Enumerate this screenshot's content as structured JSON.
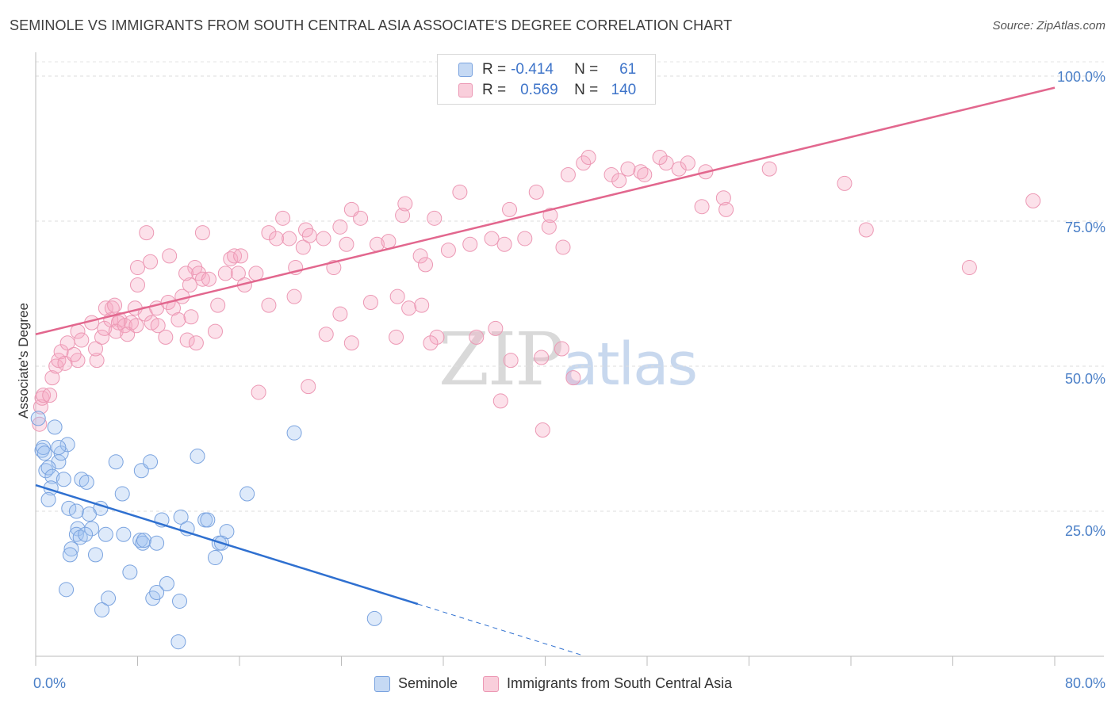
{
  "header": {
    "title": "SEMINOLE VS IMMIGRANTS FROM SOUTH CENTRAL ASIA ASSOCIATE'S DEGREE CORRELATION CHART",
    "source": "Source: ZipAtlas.com"
  },
  "watermark": {
    "zip": "ZIP",
    "atlas": "atlas"
  },
  "legend_top": {
    "rows": [
      {
        "r_label": "R =",
        "r_value": "-0.414",
        "n_label": "N =",
        "n_value": "61",
        "color": "#a8c6ef"
      },
      {
        "r_label": "R =",
        "r_value": "0.569",
        "n_label": "N =",
        "n_value": "140",
        "color": "#f6b6ca"
      }
    ]
  },
  "bottom_legend": [
    {
      "label": "Seminole",
      "color": "#a8c6ef"
    },
    {
      "label": "Immigrants from South Central Asia",
      "color": "#f6b6ca"
    }
  ],
  "chart_data": {
    "type": "scatter",
    "title": "SEMINOLE VS IMMIGRANTS FROM SOUTH CENTRAL ASIA ASSOCIATE'S DEGREE CORRELATION CHART",
    "xlabel": "",
    "ylabel": "Associate's Degree",
    "xlim": [
      0,
      80
    ],
    "ylim": [
      0,
      100
    ],
    "x_tick_labels": [
      "0.0%",
      "80.0%"
    ],
    "y_tick_labels": [
      "25.0%",
      "50.0%",
      "75.0%",
      "100.0%"
    ],
    "y_ticks": [
      25,
      50,
      75,
      100
    ],
    "grid": true,
    "colors": {
      "seminole": "#6f9fe0",
      "immigrants": "#eb8fae",
      "seminole_line": "#2f70d0",
      "immigrants_line": "#e2678e"
    },
    "series": [
      {
        "name": "Seminole",
        "trend": {
          "x": [
            0,
            30
          ],
          "y": [
            29.5,
            9.0
          ],
          "dashed_to_x": 43
        },
        "points": [
          [
            0.2,
            41
          ],
          [
            0.5,
            35.5
          ],
          [
            0.6,
            36
          ],
          [
            1.5,
            39.5
          ],
          [
            1.8,
            33.5
          ],
          [
            2,
            35
          ],
          [
            2.5,
            36.5
          ],
          [
            0.8,
            32
          ],
          [
            1,
            32.5
          ],
          [
            1.3,
            31
          ],
          [
            2.2,
            30.5
          ],
          [
            3.6,
            30.5
          ],
          [
            1.2,
            29
          ],
          [
            1,
            27
          ],
          [
            2.6,
            25.5
          ],
          [
            3.2,
            25
          ],
          [
            5.1,
            25.5
          ],
          [
            6.8,
            28
          ],
          [
            4.2,
            24.5
          ],
          [
            3.3,
            22
          ],
          [
            4.4,
            22
          ],
          [
            3.2,
            21
          ],
          [
            3.5,
            20.5
          ],
          [
            3.9,
            21
          ],
          [
            5.5,
            21
          ],
          [
            6.9,
            21
          ],
          [
            2.8,
            18.5
          ],
          [
            2.7,
            17.5
          ],
          [
            4.7,
            17.5
          ],
          [
            7.4,
            14.5
          ],
          [
            8.2,
            20
          ],
          [
            8.4,
            19.5
          ],
          [
            8.5,
            20
          ],
          [
            9.5,
            19.5
          ],
          [
            9.9,
            23.5
          ],
          [
            11.4,
            24
          ],
          [
            11.9,
            22
          ],
          [
            13.3,
            23.5
          ],
          [
            13.5,
            23.5
          ],
          [
            14.1,
            17
          ],
          [
            14.4,
            19.5
          ],
          [
            15.0,
            21.5
          ],
          [
            14.6,
            19.5
          ],
          [
            6.3,
            33.5
          ],
          [
            8.3,
            32
          ],
          [
            9.0,
            33.5
          ],
          [
            12.7,
            34.5
          ],
          [
            16.6,
            28
          ],
          [
            20.3,
            38.5
          ],
          [
            2.4,
            11.5
          ],
          [
            5.7,
            10
          ],
          [
            9.2,
            10
          ],
          [
            10.3,
            12.5
          ],
          [
            11.3,
            9.5
          ],
          [
            5.2,
            8
          ],
          [
            11.2,
            2.5
          ],
          [
            26.6,
            6.5
          ],
          [
            0.7,
            35
          ],
          [
            1.8,
            36
          ],
          [
            4.0,
            30
          ],
          [
            9.5,
            11
          ]
        ]
      },
      {
        "name": "Immigrants from South Central Asia",
        "trend": {
          "x": [
            0,
            80
          ],
          "y": [
            55.5,
            98.0
          ]
        },
        "points": [
          [
            0.3,
            40
          ],
          [
            0.4,
            43
          ],
          [
            0.5,
            44.5
          ],
          [
            0.6,
            45
          ],
          [
            1.1,
            45
          ],
          [
            1.3,
            48
          ],
          [
            1.6,
            50
          ],
          [
            1.8,
            51
          ],
          [
            2,
            52.5
          ],
          [
            2.3,
            50.5
          ],
          [
            2.5,
            54
          ],
          [
            3.3,
            51
          ],
          [
            3,
            52
          ],
          [
            3.3,
            56
          ],
          [
            3.6,
            54.5
          ],
          [
            4.8,
            51
          ],
          [
            4.7,
            53
          ],
          [
            4.4,
            57.5
          ],
          [
            5.2,
            55
          ],
          [
            5.4,
            56.5
          ],
          [
            5.9,
            58
          ],
          [
            5.5,
            60
          ],
          [
            6,
            60
          ],
          [
            6.2,
            60.5
          ],
          [
            6.6,
            58
          ],
          [
            6.5,
            57.5
          ],
          [
            6.3,
            56
          ],
          [
            7,
            57
          ],
          [
            7.5,
            57.5
          ],
          [
            7.2,
            55.5
          ],
          [
            7.8,
            60
          ],
          [
            8,
            64
          ],
          [
            8,
            67
          ],
          [
            8.6,
            59
          ],
          [
            9.1,
            57.5
          ],
          [
            9.5,
            60
          ],
          [
            9.6,
            57
          ],
          [
            10.2,
            55
          ],
          [
            10.4,
            61
          ],
          [
            10.8,
            60
          ],
          [
            11.2,
            58
          ],
          [
            11.5,
            62
          ],
          [
            11.9,
            54.5
          ],
          [
            12.6,
            54
          ],
          [
            12.1,
            64
          ],
          [
            12.5,
            67
          ],
          [
            12.8,
            66
          ],
          [
            13.1,
            65
          ],
          [
            13.6,
            65
          ],
          [
            14.3,
            60.5
          ],
          [
            14.9,
            66
          ],
          [
            15.3,
            68.5
          ],
          [
            15.6,
            69
          ],
          [
            15.9,
            66
          ],
          [
            16.1,
            69
          ],
          [
            16.4,
            64
          ],
          [
            17.3,
            66
          ],
          [
            18.3,
            73
          ],
          [
            18.9,
            72
          ],
          [
            19.4,
            75.5
          ],
          [
            19.9,
            72
          ],
          [
            20.4,
            67
          ],
          [
            21,
            70.5
          ],
          [
            21.2,
            73.5
          ],
          [
            21.5,
            72.5
          ],
          [
            22.6,
            72
          ],
          [
            23.4,
            67
          ],
          [
            23.9,
            74
          ],
          [
            24.4,
            71
          ],
          [
            24.8,
            77
          ],
          [
            25.5,
            75.5
          ],
          [
            26.8,
            71
          ],
          [
            27.7,
            71.5
          ],
          [
            28.8,
            76
          ],
          [
            29,
            78
          ],
          [
            30.2,
            69
          ],
          [
            30.6,
            67.5
          ],
          [
            31.3,
            75.5
          ],
          [
            32.4,
            70
          ],
          [
            33.3,
            80
          ],
          [
            34.1,
            71
          ],
          [
            35.8,
            72
          ],
          [
            36.8,
            71
          ],
          [
            37.2,
            77
          ],
          [
            38.4,
            72
          ],
          [
            39.3,
            80
          ],
          [
            40.3,
            74
          ],
          [
            40.4,
            76
          ],
          [
            41.4,
            70.5
          ],
          [
            41.8,
            83
          ],
          [
            43,
            85
          ],
          [
            43.4,
            86
          ],
          [
            45.2,
            83
          ],
          [
            45.8,
            82
          ],
          [
            47.5,
            83.5
          ],
          [
            49.5,
            85
          ],
          [
            50.5,
            84
          ],
          [
            52.3,
            77.5
          ],
          [
            54.2,
            77
          ],
          [
            47.8,
            83
          ],
          [
            46.5,
            84
          ],
          [
            49,
            86
          ],
          [
            51.2,
            85
          ],
          [
            52.6,
            83.5
          ],
          [
            54,
            79
          ],
          [
            57.6,
            84
          ],
          [
            63.5,
            81.5
          ],
          [
            65.2,
            73.5
          ],
          [
            73.3,
            67
          ],
          [
            78.3,
            78.5
          ],
          [
            23.9,
            59
          ],
          [
            30.3,
            60.5
          ],
          [
            28.4,
            62
          ],
          [
            31.5,
            55
          ],
          [
            31,
            54
          ],
          [
            34.6,
            55
          ],
          [
            36.1,
            56.5
          ],
          [
            39.7,
            51.5
          ],
          [
            41.3,
            53
          ],
          [
            42.2,
            48
          ],
          [
            36.5,
            44
          ],
          [
            37.3,
            51
          ],
          [
            21.4,
            46.5
          ],
          [
            17.5,
            45.5
          ],
          [
            14.1,
            56
          ],
          [
            12.2,
            58.5
          ],
          [
            18.3,
            60.5
          ],
          [
            20.3,
            62
          ],
          [
            22.8,
            55.5
          ],
          [
            24.8,
            54
          ],
          [
            26.3,
            61
          ],
          [
            28.3,
            55
          ],
          [
            29.3,
            60
          ],
          [
            39.8,
            39
          ],
          [
            7.9,
            57
          ],
          [
            9,
            68
          ],
          [
            10.5,
            69
          ],
          [
            11.8,
            66
          ],
          [
            13.1,
            73
          ],
          [
            8.7,
            73
          ]
        ]
      }
    ]
  }
}
